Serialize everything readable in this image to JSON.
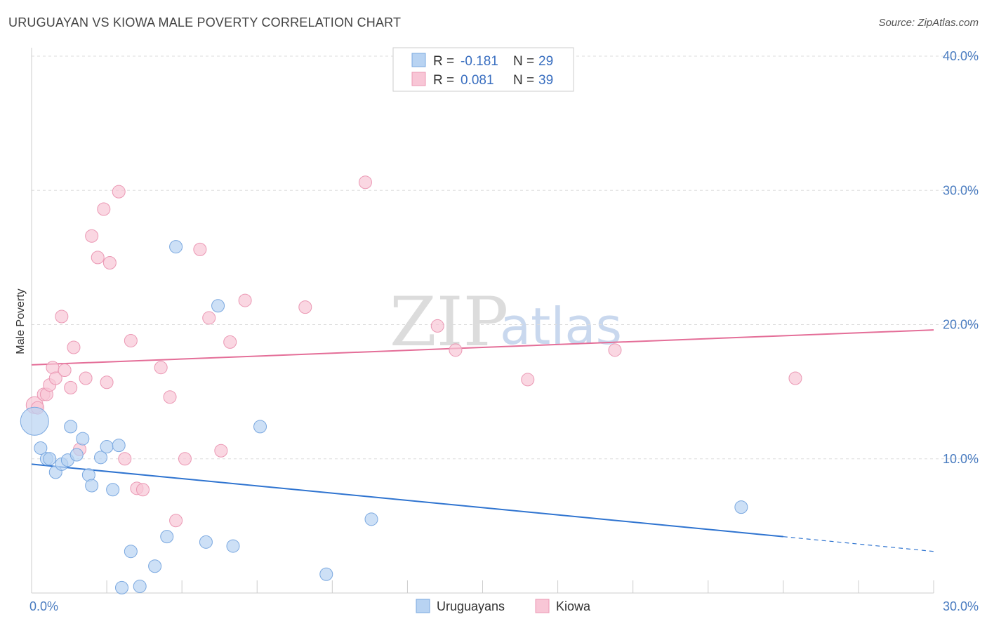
{
  "header": {
    "title": "URUGUAYAN VS KIOWA MALE POVERTY CORRELATION CHART",
    "source": "Source: ZipAtlas.com"
  },
  "watermark": {
    "zip": "ZIP",
    "atlas": "atlas"
  },
  "legend": {
    "rows": [
      {
        "r_label": "R =",
        "r_value": "-0.181",
        "n_label": "N =",
        "n_value": "29"
      },
      {
        "r_label": "R =",
        "r_value": "0.081",
        "n_label": "N =",
        "n_value": "39"
      }
    ]
  },
  "bottom_legend": {
    "uruguayans": "Uruguayans",
    "kiowa": "Kiowa"
  },
  "colors": {
    "blue_fill": "#b8d3f2",
    "blue_stroke": "#7aa8e0",
    "blue_line": "#2f74d0",
    "pink_fill": "#f8c6d6",
    "pink_stroke": "#eb98b4",
    "pink_line": "#e46e98"
  },
  "chart_data": {
    "type": "scatter",
    "title": "URUGUAYAN VS KIOWA MALE POVERTY CORRELATION CHART",
    "xlabel": "",
    "ylabel": "Male Poverty",
    "xlim": [
      0,
      30
    ],
    "ylim": [
      0,
      40
    ],
    "x_tick_labels": [
      "0.0%",
      "30.0%"
    ],
    "y_ticks": [
      10,
      20,
      30,
      40
    ],
    "y_tick_labels": [
      "10.0%",
      "20.0%",
      "30.0%",
      "40.0%"
    ],
    "series": [
      {
        "name": "Uruguayans",
        "r": -0.181,
        "n": 29,
        "trend": {
          "x0": 0,
          "y0": 9.6,
          "x1": 25,
          "y1": 4.2,
          "dash_to_x": 30,
          "dash_to_y": 3.1
        },
        "points": [
          {
            "x": 0.1,
            "y": 12.8,
            "big": true
          },
          {
            "x": 0.3,
            "y": 10.8
          },
          {
            "x": 0.5,
            "y": 10.0
          },
          {
            "x": 0.6,
            "y": 10.0
          },
          {
            "x": 0.8,
            "y": 9.0
          },
          {
            "x": 1.0,
            "y": 9.6
          },
          {
            "x": 1.2,
            "y": 9.9
          },
          {
            "x": 1.3,
            "y": 12.4
          },
          {
            "x": 1.5,
            "y": 10.3
          },
          {
            "x": 1.7,
            "y": 11.5
          },
          {
            "x": 1.9,
            "y": 8.8
          },
          {
            "x": 2.0,
            "y": 8.0
          },
          {
            "x": 2.3,
            "y": 10.1
          },
          {
            "x": 2.5,
            "y": 10.9
          },
          {
            "x": 2.7,
            "y": 7.7
          },
          {
            "x": 2.9,
            "y": 11.0
          },
          {
            "x": 3.0,
            "y": 0.4
          },
          {
            "x": 3.3,
            "y": 3.1
          },
          {
            "x": 3.6,
            "y": 0.5
          },
          {
            "x": 4.1,
            "y": 2.0
          },
          {
            "x": 4.5,
            "y": 4.2
          },
          {
            "x": 4.8,
            "y": 25.8
          },
          {
            "x": 5.8,
            "y": 3.8
          },
          {
            "x": 6.2,
            "y": 21.4
          },
          {
            "x": 6.7,
            "y": 3.5
          },
          {
            "x": 7.6,
            "y": 12.4
          },
          {
            "x": 9.8,
            "y": 1.4
          },
          {
            "x": 11.3,
            "y": 5.5
          },
          {
            "x": 23.6,
            "y": 6.4
          }
        ]
      },
      {
        "name": "Kiowa",
        "r": 0.081,
        "n": 39,
        "trend": {
          "x0": 0,
          "y0": 17.0,
          "x1": 30,
          "y1": 19.6
        },
        "points": [
          {
            "x": 0.1,
            "y": 14.0,
            "big": true
          },
          {
            "x": 0.2,
            "y": 13.8
          },
          {
            "x": 0.4,
            "y": 14.8
          },
          {
            "x": 0.5,
            "y": 14.8
          },
          {
            "x": 0.6,
            "y": 15.5
          },
          {
            "x": 0.7,
            "y": 16.8
          },
          {
            "x": 0.8,
            "y": 16.0
          },
          {
            "x": 1.0,
            "y": 20.6
          },
          {
            "x": 1.1,
            "y": 16.6
          },
          {
            "x": 1.3,
            "y": 15.3
          },
          {
            "x": 1.4,
            "y": 18.3
          },
          {
            "x": 1.6,
            "y": 10.7
          },
          {
            "x": 1.8,
            "y": 16.0
          },
          {
            "x": 2.0,
            "y": 26.6
          },
          {
            "x": 2.2,
            "y": 25.0
          },
          {
            "x": 2.4,
            "y": 28.6
          },
          {
            "x": 2.5,
            "y": 15.7
          },
          {
            "x": 2.6,
            "y": 24.6
          },
          {
            "x": 2.9,
            "y": 29.9
          },
          {
            "x": 3.1,
            "y": 10.0
          },
          {
            "x": 3.3,
            "y": 18.8
          },
          {
            "x": 3.5,
            "y": 7.8
          },
          {
            "x": 3.7,
            "y": 7.7
          },
          {
            "x": 4.3,
            "y": 16.8
          },
          {
            "x": 4.6,
            "y": 14.6
          },
          {
            "x": 4.8,
            "y": 5.4
          },
          {
            "x": 5.1,
            "y": 10.0
          },
          {
            "x": 5.6,
            "y": 25.6
          },
          {
            "x": 5.9,
            "y": 20.5
          },
          {
            "x": 6.3,
            "y": 10.6
          },
          {
            "x": 6.6,
            "y": 18.7
          },
          {
            "x": 7.1,
            "y": 21.8
          },
          {
            "x": 9.1,
            "y": 21.3
          },
          {
            "x": 11.1,
            "y": 30.6
          },
          {
            "x": 13.5,
            "y": 19.9
          },
          {
            "x": 14.1,
            "y": 18.1
          },
          {
            "x": 16.5,
            "y": 15.9
          },
          {
            "x": 19.4,
            "y": 18.1
          },
          {
            "x": 25.4,
            "y": 16.0
          }
        ]
      }
    ]
  }
}
